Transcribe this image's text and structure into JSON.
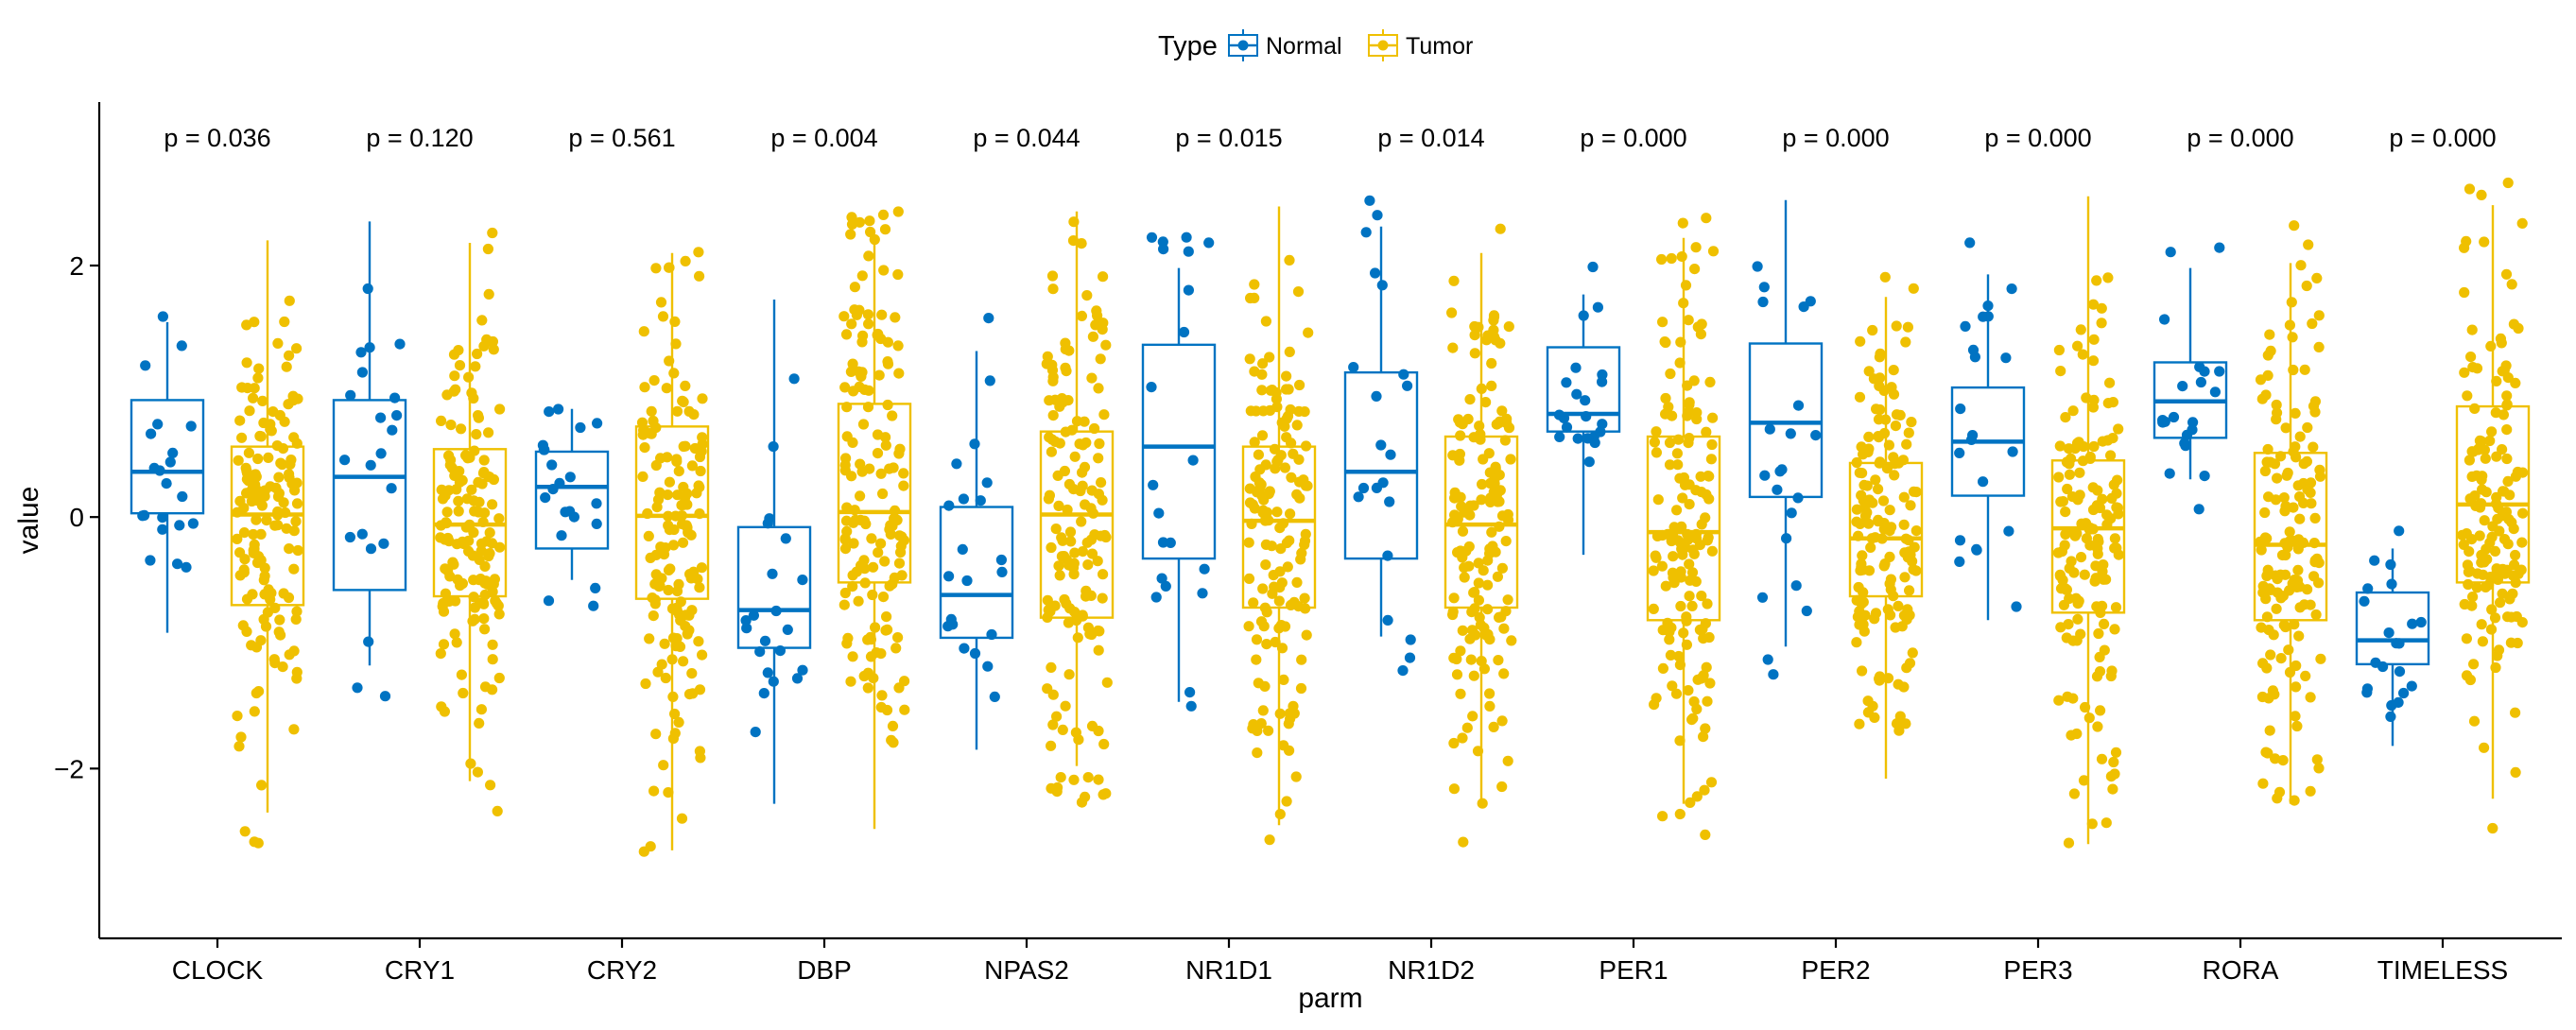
{
  "chart_data": {
    "type": "box",
    "title": "",
    "xlabel": "parm",
    "ylabel": "value",
    "ylim": [
      -3.35,
      3.3
    ],
    "yticks": [
      -2,
      0,
      2
    ],
    "ytick_labels": [
      "−2",
      "0",
      "2"
    ],
    "legend": {
      "title": "Type",
      "position": "top",
      "entries": [
        {
          "name": "Normal",
          "color": "#0073C2"
        },
        {
          "name": "Tumor",
          "color": "#EFC000"
        }
      ]
    },
    "categories": [
      "CLOCK",
      "CRY1",
      "CRY2",
      "DBP",
      "NPAS2",
      "NR1D1",
      "NR1D2",
      "PER1",
      "PER2",
      "PER3",
      "RORA",
      "TIMELESS"
    ],
    "p_values": [
      "p = 0.036",
      "p = 0.120",
      "p = 0.561",
      "p = 0.004",
      "p = 0.044",
      "p = 0.015",
      "p = 0.014",
      "p = 0.000",
      "p = 0.000",
      "p = 0.000",
      "p = 0.000",
      "p = 0.000"
    ],
    "series": [
      {
        "name": "Normal",
        "color": "#0073C2",
        "n_points": 21,
        "boxes": [
          {
            "whisker_low": -0.92,
            "q1": 0.03,
            "median": 0.36,
            "q3": 0.93,
            "whisker_high": 1.55
          },
          {
            "whisker_low": -1.18,
            "q1": -0.58,
            "median": 0.32,
            "q3": 0.93,
            "whisker_high": 2.35
          },
          {
            "whisker_low": -0.5,
            "q1": -0.25,
            "median": 0.24,
            "q3": 0.52,
            "whisker_high": 0.86
          },
          {
            "whisker_low": -2.28,
            "q1": -1.04,
            "median": -0.74,
            "q3": -0.08,
            "whisker_high": 1.73
          },
          {
            "whisker_low": -1.85,
            "q1": -0.96,
            "median": -0.62,
            "q3": 0.08,
            "whisker_high": 1.32
          },
          {
            "whisker_low": -1.47,
            "q1": -0.33,
            "median": 0.56,
            "q3": 1.37,
            "whisker_high": 1.98
          },
          {
            "whisker_low": -0.95,
            "q1": -0.33,
            "median": 0.36,
            "q3": 1.15,
            "whisker_high": 2.31
          },
          {
            "whisker_low": -0.3,
            "q1": 0.68,
            "median": 0.82,
            "q3": 1.35,
            "whisker_high": 1.77
          },
          {
            "whisker_low": -1.03,
            "q1": 0.16,
            "median": 0.75,
            "q3": 1.38,
            "whisker_high": 2.52
          },
          {
            "whisker_low": -0.82,
            "q1": 0.17,
            "median": 0.6,
            "q3": 1.03,
            "whisker_high": 1.93
          },
          {
            "whisker_low": 0.3,
            "q1": 0.63,
            "median": 0.92,
            "q3": 1.23,
            "whisker_high": 1.98
          },
          {
            "whisker_low": -1.82,
            "q1": -1.17,
            "median": -0.98,
            "q3": -0.6,
            "whisker_high": -0.25
          }
        ]
      },
      {
        "name": "Tumor",
        "color": "#EFC000",
        "n_points": 150,
        "boxes": [
          {
            "whisker_low": -2.35,
            "q1": -0.7,
            "median": 0.02,
            "q3": 0.56,
            "whisker_high": 2.2
          },
          {
            "whisker_low": -2.1,
            "q1": -0.63,
            "median": -0.06,
            "q3": 0.54,
            "whisker_high": 2.18
          },
          {
            "whisker_low": -2.65,
            "q1": -0.65,
            "median": 0.01,
            "q3": 0.72,
            "whisker_high": 2.1
          },
          {
            "whisker_low": -2.48,
            "q1": -0.52,
            "median": 0.04,
            "q3": 0.9,
            "whisker_high": 2.18
          },
          {
            "whisker_low": -1.98,
            "q1": -0.8,
            "median": 0.02,
            "q3": 0.68,
            "whisker_high": 2.43
          },
          {
            "whisker_low": -2.45,
            "q1": -0.72,
            "median": -0.03,
            "q3": 0.56,
            "whisker_high": 2.47
          },
          {
            "whisker_low": -2.3,
            "q1": -0.72,
            "median": -0.06,
            "q3": 0.64,
            "whisker_high": 2.1
          },
          {
            "whisker_low": -2.28,
            "q1": -0.82,
            "median": -0.12,
            "q3": 0.64,
            "whisker_high": 2.22
          },
          {
            "whisker_low": -2.08,
            "q1": -0.63,
            "median": -0.17,
            "q3": 0.43,
            "whisker_high": 1.75
          },
          {
            "whisker_low": -2.6,
            "q1": -0.76,
            "median": -0.09,
            "q3": 0.45,
            "whisker_high": 2.55
          },
          {
            "whisker_low": -2.28,
            "q1": -0.82,
            "median": -0.22,
            "q3": 0.51,
            "whisker_high": 2.02
          },
          {
            "whisker_low": -2.24,
            "q1": -0.52,
            "median": 0.1,
            "q3": 0.88,
            "whisker_high": 2.48
          }
        ]
      }
    ]
  }
}
